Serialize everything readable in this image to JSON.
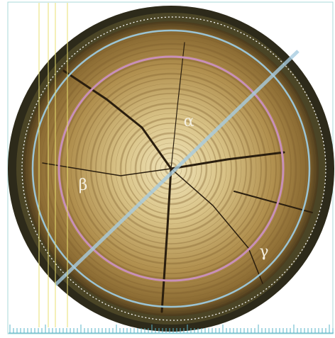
{
  "labels": {
    "alpha": "α",
    "beta": "β",
    "gamma": "γ"
  }
}
